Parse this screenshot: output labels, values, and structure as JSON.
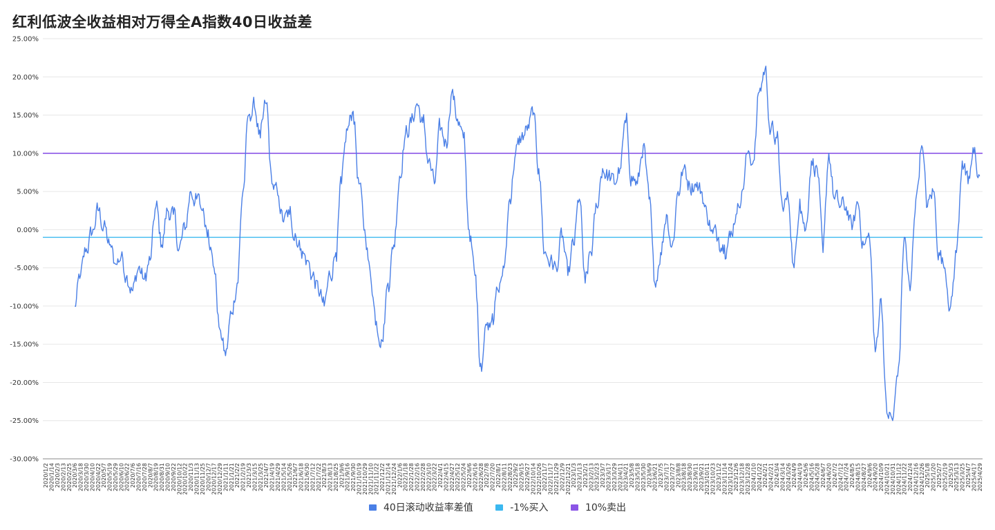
{
  "title": "红利低波全收益相对万得全A指数40日收益差",
  "colors": {
    "series": "#4a7fe6",
    "buy_line": "#3bb8f0",
    "sell_line": "#8b55e6",
    "grid": "#e6e6e6",
    "axis_text": "#333333"
  },
  "chart_data": {
    "type": "line",
    "title": "红利低波全收益相对万得全A指数40日收益差",
    "ylim": [
      -0.3,
      0.25
    ],
    "yticks": [
      0.25,
      0.2,
      0.15,
      0.1,
      0.05,
      0.0,
      -0.05,
      -0.1,
      -0.15,
      -0.2,
      -0.25,
      -0.3
    ],
    "ytick_labels": [
      "25.00%",
      "20.00%",
      "15.00%",
      "10.00%",
      "5.00%",
      "0.00%",
      "-5.00%",
      "-10.00%",
      "-15.00%",
      "-20.00%",
      "-25.00%",
      "-30.00%"
    ],
    "x_tick_labels": [
      "2020/1/2",
      "2020/1/14",
      "2020/2/3",
      "2020/2/13",
      "2020/2/25",
      "2020/3/6",
      "2020/3/18",
      "2020/3/30",
      "2020/4/10",
      "2020/4/22",
      "2020/5/7",
      "2020/5/19",
      "2020/5/29",
      "2020/6/10",
      "2020/6/22",
      "2020/7/6",
      "2020/7/16",
      "2020/7/28",
      "2020/8/7",
      "2020/8/19",
      "2020/8/31",
      "2020/9/10",
      "2020/9/22",
      "2020/10/12",
      "2020/10/22",
      "2020/11/3",
      "2020/11/13",
      "2020/11/25",
      "2020/12/7",
      "2020/12/17",
      "2020/12/29",
      "2021/1/11",
      "2021/1/21",
      "2021/2/2",
      "2021/2/19",
      "2021/3/3",
      "2021/3/15",
      "2021/3/25",
      "2021/4/7",
      "2021/4/19",
      "2021/4/29",
      "2021/5/14",
      "2021/5/26",
      "2021/6/7",
      "2021/6/18",
      "2021/6/30",
      "2021/7/12",
      "2021/7/22",
      "2021/8/3",
      "2021/8/13",
      "2021/8/25",
      "2021/9/6",
      "2021/9/16",
      "2021/9/30",
      "2021/10/19",
      "2021/10/29",
      "2021/11/10",
      "2021/11/22",
      "2021/12/2",
      "2021/12/14",
      "2021/12/24",
      "2022/1/6",
      "2022/1/18",
      "2022/1/28",
      "2022/2/16",
      "2022/2/28",
      "2022/3/10",
      "2022/3/22",
      "2022/4/1",
      "2022/4/15",
      "2022/4/27",
      "2022/5/12",
      "2022/5/24",
      "2022/6/6",
      "2022/6/16",
      "2022/6/28",
      "2022/7/8",
      "2022/7/20",
      "2022/8/1",
      "2022/8/11",
      "2022/8/23",
      "2022/9/2",
      "2022/9/15",
      "2022/9/27",
      "2022/10/14",
      "2022/10/26",
      "2022/11/7",
      "2022/11/17",
      "2022/11/29",
      "2022/12/9",
      "2022/12/21",
      "2023/1/3",
      "2023/1/13",
      "2023/2/1",
      "2023/2/13",
      "2023/2/23",
      "2023/3/7",
      "2023/3/17",
      "2023/3/29",
      "2023/4/11",
      "2023/4/21",
      "2023/5/8",
      "2023/5/18",
      "2023/5/30",
      "2023/6/9",
      "2023/6/21",
      "2023/7/5",
      "2023/7/17",
      "2023/7/27",
      "2023/8/8",
      "2023/8/18",
      "2023/8/30",
      "2023/9/11",
      "2023/9/21",
      "2023/10/11",
      "2023/10/23",
      "2023/11/2",
      "2023/11/14",
      "2023/11/24",
      "2023/12/6",
      "2023/12/18",
      "2023/12/28",
      "2024/1/10",
      "2024/1/22",
      "2024/2/1",
      "2024/2/21",
      "2024/3/4",
      "2024/3/14",
      "2024/3/26",
      "2024/4/9",
      "2024/4/19",
      "2024/5/6",
      "2024/5/16",
      "2024/5/28",
      "2024/6/7",
      "2024/6/20",
      "2024/7/2",
      "2024/7/12",
      "2024/7/24",
      "2024/8/5",
      "2024/8/15",
      "2024/8/27",
      "2024/9/6",
      "2024/9/20",
      "2024/10/9",
      "2024/10/21",
      "2024/10/31",
      "2024/11/12",
      "2024/11/22",
      "2024/12/4",
      "2024/12/16",
      "2024/12/26",
      "2025/1/8",
      "2025/1/20",
      "2025/2/7",
      "2025/2/19",
      "2025/3/3",
      "2025/3/13",
      "2025/3/25",
      "2025/4/7",
      "2025/4/17",
      "2025/4/29"
    ],
    "buy_level": -0.01,
    "sell_level": 0.1,
    "series": [
      {
        "name": "40日滚动收益率差值",
        "anchors": [
          [
            "2020/3/6",
            -0.1
          ],
          [
            "2020/3/18",
            -0.06
          ],
          [
            "2020/3/30",
            -0.025
          ],
          [
            "2020/4/10",
            -0.005
          ],
          [
            "2020/4/22",
            0.025
          ],
          [
            "2020/5/7",
            0.005
          ],
          [
            "2020/5/19",
            -0.02
          ],
          [
            "2020/5/29",
            -0.045
          ],
          [
            "2020/6/10",
            -0.035
          ],
          [
            "2020/6/22",
            -0.06
          ],
          [
            "2020/7/6",
            -0.08
          ],
          [
            "2020/7/16",
            -0.05
          ],
          [
            "2020/7/28",
            -0.065
          ],
          [
            "2020/8/7",
            -0.04
          ],
          [
            "2020/8/19",
            0.03
          ],
          [
            "2020/8/31",
            -0.02
          ],
          [
            "2020/9/10",
            0.025
          ],
          [
            "2020/9/22",
            0.02
          ],
          [
            "2020/10/12",
            -0.025
          ],
          [
            "2020/10/22",
            0.0
          ],
          [
            "2020/11/3",
            0.05
          ],
          [
            "2020/11/13",
            0.04
          ],
          [
            "2020/11/25",
            0.025
          ],
          [
            "2020/12/7",
            0.0
          ],
          [
            "2020/12/17",
            -0.05
          ],
          [
            "2020/12/29",
            -0.13
          ],
          [
            "2021/1/11",
            -0.165
          ],
          [
            "2021/1/21",
            -0.11
          ],
          [
            "2021/2/2",
            -0.07
          ],
          [
            "2021/2/19",
            0.05
          ],
          [
            "2021/3/3",
            0.15
          ],
          [
            "2021/3/15",
            0.16
          ],
          [
            "2021/3/25",
            0.12
          ],
          [
            "2021/4/7",
            0.165
          ],
          [
            "2021/4/19",
            0.06
          ],
          [
            "2021/4/29",
            0.045
          ],
          [
            "2021/5/14",
            0.01
          ],
          [
            "2021/5/26",
            0.02
          ],
          [
            "2021/6/7",
            -0.005
          ],
          [
            "2021/6/18",
            -0.025
          ],
          [
            "2021/6/30",
            -0.04
          ],
          [
            "2021/7/12",
            -0.06
          ],
          [
            "2021/7/22",
            -0.08
          ],
          [
            "2021/8/3",
            -0.1
          ],
          [
            "2021/8/13",
            -0.06
          ],
          [
            "2021/8/25",
            -0.03
          ],
          [
            "2021/9/6",
            0.06
          ],
          [
            "2021/9/16",
            0.13
          ],
          [
            "2021/9/30",
            0.155
          ],
          [
            "2021/10/19",
            0.06
          ],
          [
            "2021/10/29",
            0.0
          ],
          [
            "2021/11/10",
            -0.06
          ],
          [
            "2021/11/22",
            -0.12
          ],
          [
            "2021/12/2",
            -0.145
          ],
          [
            "2021/12/14",
            -0.07
          ],
          [
            "2021/12/24",
            -0.02
          ],
          [
            "2022/1/6",
            0.07
          ],
          [
            "2022/1/18",
            0.125
          ],
          [
            "2022/1/28",
            0.14
          ],
          [
            "2022/2/16",
            0.165
          ],
          [
            "2022/2/28",
            0.14
          ],
          [
            "2022/3/10",
            0.09
          ],
          [
            "2022/3/22",
            0.06
          ],
          [
            "2022/4/1",
            0.13
          ],
          [
            "2022/4/15",
            0.115
          ],
          [
            "2022/4/27",
            0.18
          ],
          [
            "2022/5/12",
            0.145
          ],
          [
            "2022/5/24",
            0.12
          ],
          [
            "2022/6/6",
            0.0
          ],
          [
            "2022/6/16",
            -0.06
          ],
          [
            "2022/6/28",
            -0.175
          ],
          [
            "2022/7/8",
            -0.125
          ],
          [
            "2022/7/20",
            -0.11
          ],
          [
            "2022/8/1",
            -0.08
          ],
          [
            "2022/8/11",
            -0.05
          ],
          [
            "2022/8/23",
            0.04
          ],
          [
            "2022/9/2",
            0.1
          ],
          [
            "2022/9/15",
            0.12
          ],
          [
            "2022/9/27",
            0.13
          ],
          [
            "2022/10/14",
            0.15
          ],
          [
            "2022/10/26",
            0.08
          ],
          [
            "2022/11/7",
            -0.03
          ],
          [
            "2022/11/17",
            -0.04
          ],
          [
            "2022/11/29",
            -0.05
          ],
          [
            "2022/12/9",
            -0.01
          ],
          [
            "2022/12/21",
            -0.06
          ],
          [
            "2023/1/3",
            -0.02
          ],
          [
            "2023/1/13",
            0.04
          ],
          [
            "2023/2/1",
            -0.07
          ],
          [
            "2023/2/13",
            -0.03
          ],
          [
            "2023/2/23",
            0.03
          ],
          [
            "2023/3/7",
            0.08
          ],
          [
            "2023/3/17",
            0.07
          ],
          [
            "2023/3/29",
            0.06
          ],
          [
            "2023/4/11",
            0.08
          ],
          [
            "2023/4/21",
            0.14
          ],
          [
            "2023/5/8",
            0.07
          ],
          [
            "2023/5/18",
            0.06
          ],
          [
            "2023/5/30",
            0.11
          ],
          [
            "2023/6/9",
            0.04
          ],
          [
            "2023/6/21",
            -0.07
          ],
          [
            "2023/7/5",
            -0.03
          ],
          [
            "2023/7/17",
            0.02
          ],
          [
            "2023/7/27",
            -0.02
          ],
          [
            "2023/8/8",
            0.05
          ],
          [
            "2023/8/18",
            0.08
          ],
          [
            "2023/8/30",
            0.06
          ],
          [
            "2023/9/11",
            0.06
          ],
          [
            "2023/9/21",
            0.05
          ],
          [
            "2023/10/11",
            0.02
          ],
          [
            "2023/10/23",
            -0.005
          ],
          [
            "2023/11/2",
            -0.01
          ],
          [
            "2023/11/14",
            -0.02
          ],
          [
            "2023/11/24",
            -0.01
          ],
          [
            "2023/12/6",
            0.02
          ],
          [
            "2023/12/18",
            0.05
          ],
          [
            "2023/12/28",
            0.1
          ],
          [
            "2024/1/10",
            0.09
          ],
          [
            "2024/1/22",
            0.18
          ],
          [
            "2024/2/1",
            0.21
          ],
          [
            "2024/2/21",
            0.13
          ],
          [
            "2024/3/4",
            0.12
          ],
          [
            "2024/3/14",
            0.03
          ],
          [
            "2024/3/26",
            0.04
          ],
          [
            "2024/4/9",
            -0.05
          ],
          [
            "2024/4/19",
            0.04
          ],
          [
            "2024/5/6",
            0.0
          ],
          [
            "2024/5/16",
            0.09
          ],
          [
            "2024/5/28",
            0.08
          ],
          [
            "2024/6/7",
            -0.03
          ],
          [
            "2024/6/20",
            0.1
          ],
          [
            "2024/7/2",
            0.04
          ],
          [
            "2024/7/12",
            0.03
          ],
          [
            "2024/7/24",
            0.03
          ],
          [
            "2024/8/5",
            0.0
          ],
          [
            "2024/8/15",
            0.035
          ],
          [
            "2024/8/27",
            -0.02
          ],
          [
            "2024/9/6",
            -0.01
          ],
          [
            "2024/9/20",
            -0.16
          ],
          [
            "2024/10/9",
            -0.09
          ],
          [
            "2024/10/21",
            -0.24
          ],
          [
            "2024/10/31",
            -0.25
          ],
          [
            "2024/11/12",
            -0.18
          ],
          [
            "2024/11/22",
            -0.01
          ],
          [
            "2024/12/4",
            -0.08
          ],
          [
            "2024/12/16",
            0.04
          ],
          [
            "2024/12/26",
            0.11
          ],
          [
            "2025/1/8",
            0.03
          ],
          [
            "2025/1/20",
            0.05
          ],
          [
            "2025/2/7",
            -0.03
          ],
          [
            "2025/2/19",
            -0.05
          ],
          [
            "2025/3/3",
            -0.1
          ],
          [
            "2025/3/13",
            -0.03
          ],
          [
            "2025/3/25",
            0.09
          ],
          [
            "2025/4/7",
            0.06
          ],
          [
            "2025/4/17",
            0.1
          ],
          [
            "2025/4/29",
            0.07
          ]
        ]
      },
      {
        "name": "-1%买入",
        "value": -0.01
      },
      {
        "name": "10%卖出",
        "value": 0.1
      }
    ],
    "legend_position": "bottom",
    "grid": true
  },
  "legend": [
    {
      "label": "40日滚动收益率差值",
      "color": "#4a7fe6"
    },
    {
      "label": "-1%买入",
      "color": "#3bb8f0"
    },
    {
      "label": "10%卖出",
      "color": "#8b55e6"
    }
  ]
}
